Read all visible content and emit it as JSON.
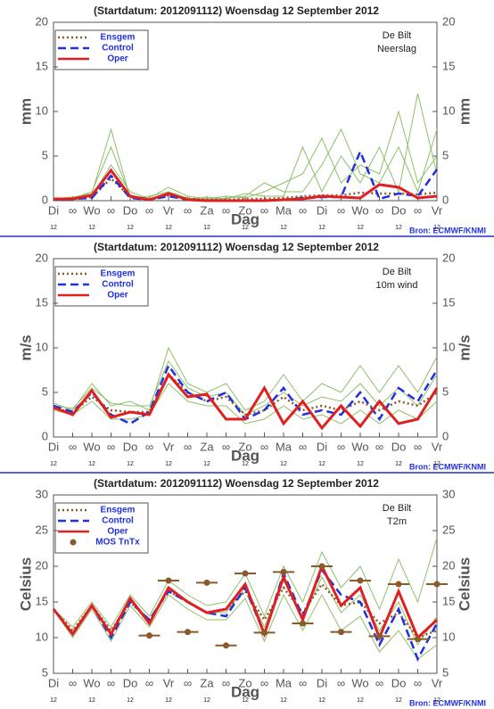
{
  "chart_data": [
    {
      "type": "line",
      "title": "(Startdatum: 2012091112)   Woensdag  12 September 2012",
      "station": "De Bilt",
      "variable": "Neerslag",
      "ylabel": "mm",
      "xlabel": "Dag",
      "source": "Bron: ECMWF/KNMI",
      "categories": [
        "Di",
        "∞",
        "Wo",
        "∞",
        "Do",
        "∞",
        "Vr",
        "∞",
        "Za",
        "∞",
        "Zo",
        "∞",
        "Ma",
        "∞",
        "Di",
        "∞",
        "Wo",
        "∞",
        "Do",
        "∞",
        "Vr"
      ],
      "x_sublabels": [
        "12",
        "12",
        "12",
        "12",
        "12",
        "12",
        "12",
        "12",
        "12",
        "12",
        "12"
      ],
      "ylim": [
        0,
        20
      ],
      "yticks": [
        0,
        5,
        10,
        15,
        20
      ],
      "series": [
        {
          "color": "#8fbf6a",
          "values": [
            0.1,
            0.3,
            1,
            6,
            0.5,
            0.3,
            1.5,
            0.5,
            0.2,
            0.5,
            0.3,
            1,
            2,
            3,
            7,
            2,
            4,
            3,
            10,
            2,
            5
          ]
        },
        {
          "color": "#8fbf6a",
          "values": [
            0.3,
            0.1,
            0.5,
            4,
            1,
            0.2,
            0.6,
            0.2,
            0.4,
            0.2,
            0.8,
            0.5,
            0.5,
            6,
            1,
            5,
            2,
            6,
            1,
            12,
            3
          ]
        },
        {
          "color": "#8fbf6a",
          "values": [
            0.2,
            0.4,
            0.8,
            8,
            0.3,
            0.5,
            1,
            0.3,
            0.1,
            0.3,
            0.5,
            2,
            1,
            1,
            4,
            8,
            3,
            2,
            6,
            1,
            8
          ]
        },
        {
          "name": "Ensgem",
          "color": "#8b5a2b",
          "style": "dotted",
          "values": [
            0.2,
            0.2,
            0.4,
            2.5,
            0.4,
            0.1,
            0.6,
            0.2,
            0.1,
            0.1,
            0.2,
            0.2,
            0.3,
            0.5,
            0.6,
            0.6,
            0.9,
            0.8,
            0.8,
            0.7,
            0.9
          ]
        },
        {
          "name": "Control",
          "color": "#2030e0",
          "style": "dashed",
          "values": [
            0.2,
            0.2,
            0.3,
            2.8,
            0.3,
            0.1,
            0.5,
            0.1,
            0,
            0,
            0,
            0,
            0.1,
            0.3,
            0.4,
            0.4,
            5.5,
            0.2,
            0.8,
            0.5,
            3.5
          ]
        },
        {
          "name": "Oper",
          "color": "#e02020",
          "style": "solid",
          "values": [
            0.2,
            0.2,
            0.6,
            3.4,
            0.5,
            0.1,
            0.8,
            0.1,
            0,
            0,
            0,
            0,
            0.1,
            0.2,
            0.5,
            0.4,
            0.3,
            1.8,
            1.5,
            0.3,
            0.5
          ]
        }
      ]
    },
    {
      "type": "line",
      "title": "(Startdatum: 2012091112)   Woensdag  12 September 2012",
      "station": "De Bilt",
      "variable": "10m wind",
      "ylabel": "m/s",
      "xlabel": "Dag",
      "source": "Bron: ECMWF/KNMI",
      "categories": [
        "Di",
        "∞",
        "Wo",
        "∞",
        "Do",
        "∞",
        "Vr",
        "∞",
        "Za",
        "∞",
        "Zo",
        "∞",
        "Ma",
        "∞",
        "Di",
        "∞",
        "Wo",
        "∞",
        "Do",
        "∞",
        "Vr"
      ],
      "x_sublabels": [
        "12",
        "12",
        "12",
        "12",
        "12",
        "12",
        "12",
        "12",
        "12",
        "12",
        "12"
      ],
      "ylim": [
        0,
        20
      ],
      "yticks": [
        0,
        5,
        10,
        15,
        20
      ],
      "series": [
        {
          "color": "#8fbf6a",
          "values": [
            3.8,
            3,
            6,
            3.5,
            4,
            3,
            10,
            6,
            5,
            6,
            3,
            4,
            7,
            4,
            6,
            5,
            8,
            5,
            8,
            5,
            9
          ]
        },
        {
          "color": "#8fbf6a",
          "values": [
            3,
            2.5,
            4,
            2,
            2,
            2.5,
            6,
            4,
            3.5,
            3.5,
            1.5,
            2,
            3.5,
            2,
            2.5,
            1.5,
            3,
            1.5,
            3,
            2,
            4
          ]
        },
        {
          "color": "#8fbf6a",
          "values": [
            3.5,
            3.2,
            5.5,
            3.8,
            3.5,
            3.5,
            8.5,
            5.5,
            4.5,
            5,
            2.5,
            3.5,
            5,
            3.5,
            4.5,
            4,
            6,
            3.5,
            5.5,
            3.5,
            7
          ]
        },
        {
          "name": "Ensgem",
          "color": "#8b5a2b",
          "style": "dotted",
          "values": [
            3.2,
            2.8,
            4.5,
            3,
            2.8,
            2.8,
            7,
            5,
            4,
            4.5,
            2.5,
            3,
            4.5,
            3,
            3.5,
            3,
            4,
            3,
            4,
            3.5,
            5
          ]
        },
        {
          "name": "Control",
          "color": "#2030e0",
          "style": "dashed",
          "values": [
            3.5,
            2.8,
            5,
            2.5,
            1.5,
            2.8,
            8,
            5,
            4,
            5,
            2,
            3,
            5.5,
            2.5,
            3,
            2.5,
            5,
            2,
            5.5,
            4,
            7.5
          ]
        },
        {
          "name": "Oper",
          "color": "#e02020",
          "style": "solid",
          "values": [
            3.3,
            2.5,
            5.2,
            2.2,
            2.8,
            2.5,
            7,
            4.5,
            4.8,
            2,
            2,
            5.5,
            1.5,
            4,
            1,
            3.5,
            1.2,
            4,
            1.5,
            2,
            5.5
          ]
        }
      ]
    },
    {
      "type": "line",
      "title": "(Startdatum: 2012091112)   Woensdag  12 September 2012",
      "station": "De Bilt",
      "variable": "T2m",
      "ylabel": "Celsius",
      "xlabel": "Dag",
      "source": "Bron: ECMWF/KNMI",
      "categories": [
        "Di",
        "∞",
        "Wo",
        "∞",
        "Do",
        "∞",
        "Vr",
        "∞",
        "Za",
        "∞",
        "Zo",
        "∞",
        "Ma",
        "∞",
        "Di",
        "∞",
        "Wo",
        "∞",
        "Do",
        "∞",
        "Vr"
      ],
      "x_sublabels": [
        "12",
        "12",
        "12",
        "12",
        "12",
        "12",
        "12",
        "12",
        "12",
        "12",
        "12"
      ],
      "ylim": [
        5,
        30
      ],
      "yticks": [
        5,
        10,
        15,
        20,
        25,
        30
      ],
      "series": [
        {
          "color": "#8fbf6a",
          "values": [
            14,
            11.5,
            15,
            11.5,
            16,
            13,
            18,
            16,
            14.5,
            15,
            19,
            13,
            20,
            15,
            22,
            17,
            20,
            14,
            21,
            15,
            24
          ]
        },
        {
          "color": "#8fbf6a",
          "values": [
            14,
            10,
            14,
            9.5,
            14.5,
            11.5,
            16,
            14,
            12.5,
            12.5,
            15.5,
            9.5,
            16,
            11,
            16,
            11,
            13,
            8,
            11,
            7,
            9
          ]
        },
        {
          "color": "#8fbf6a",
          "values": [
            14,
            10.8,
            14.6,
            10.5,
            15.2,
            12.2,
            17,
            15.2,
            13.6,
            13.5,
            17,
            11.5,
            18,
            12.5,
            18.5,
            13.5,
            16,
            11,
            15,
            9,
            13
          ]
        },
        {
          "name": "Ensgem",
          "color": "#8b5a2b",
          "style": "dotted",
          "values": [
            14,
            11,
            14.5,
            11,
            15,
            12.5,
            16.5,
            15,
            13.5,
            14,
            16.5,
            12.5,
            17,
            13.5,
            17.5,
            14.5,
            15,
            12,
            13.5,
            10,
            11
          ]
        },
        {
          "name": "Control",
          "color": "#2030e0",
          "style": "dashed",
          "values": [
            14,
            10.5,
            14.5,
            10,
            15,
            12.5,
            16.5,
            15,
            13.5,
            13,
            17,
            10.5,
            19,
            13,
            19.5,
            16,
            15,
            9,
            14,
            7,
            12
          ]
        },
        {
          "name": "Oper",
          "color": "#e02020",
          "style": "solid",
          "values": [
            14,
            10.5,
            14.5,
            10.5,
            15.5,
            12,
            17,
            15,
            13.5,
            14,
            17.5,
            10.5,
            18.5,
            12.5,
            20,
            14.5,
            17,
            10,
            16.5,
            10,
            12.5
          ]
        }
      ],
      "points": {
        "name": "MOS TnTx",
        "color": "#8b5a2b",
        "x": [
          5,
          6,
          7,
          8,
          9,
          10,
          11,
          12,
          13,
          14,
          15,
          16,
          17,
          18,
          19,
          20
        ],
        "values": [
          10.3,
          18,
          10.8,
          17.7,
          8.9,
          19,
          10.7,
          19.2,
          12,
          20,
          10.8,
          18,
          10.2,
          17.5,
          9.8,
          17.5
        ]
      }
    }
  ]
}
